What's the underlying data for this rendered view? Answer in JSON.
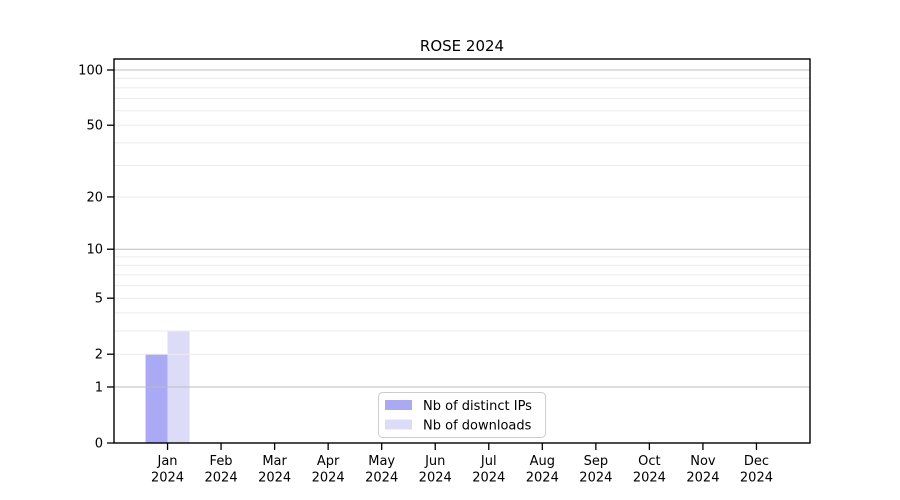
{
  "chart_data": {
    "type": "bar",
    "title": "ROSE 2024",
    "categories": [
      "Jan",
      "Feb",
      "Mar",
      "Apr",
      "May",
      "Jun",
      "Jul",
      "Aug",
      "Sep",
      "Oct",
      "Nov",
      "Dec"
    ],
    "category_year_line": "2024",
    "series": [
      {
        "name": "Nb of distinct IPs",
        "color": "#a9a9f6",
        "values": [
          2,
          0,
          0,
          0,
          0,
          0,
          0,
          0,
          0,
          0,
          0,
          0
        ]
      },
      {
        "name": "Nb of downloads",
        "color": "#dcdcf9",
        "values": [
          3,
          0,
          0,
          0,
          0,
          0,
          0,
          0,
          0,
          0,
          0,
          0
        ]
      }
    ],
    "xlabel": "",
    "ylabel": "",
    "yscale": "log1p",
    "ylim": [
      0,
      115
    ],
    "ytick_values": [
      0,
      1,
      2,
      5,
      10,
      20,
      50,
      100
    ],
    "ytick_labels": [
      "0",
      "1",
      "2",
      "5",
      "10",
      "20",
      "50",
      "100"
    ],
    "major_gridline_values": [
      1,
      10,
      100
    ],
    "minor_gridline_values": [
      2,
      3,
      4,
      5,
      6,
      7,
      8,
      9,
      20,
      30,
      40,
      50,
      60,
      70,
      80,
      90
    ],
    "grid": true,
    "legend_position": "lower center",
    "colors": {
      "background": "#ffffff",
      "axis": "#000000",
      "major_grid": "#bdbdbd",
      "minor_grid": "#ebebeb",
      "text": "#000000",
      "legend_border": "#cccccc",
      "legend_fill": "#ffffff"
    }
  }
}
